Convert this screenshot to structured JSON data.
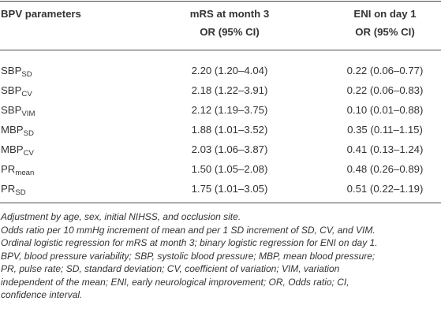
{
  "table": {
    "headers": {
      "col1": "BPV parameters",
      "col2_line1": "mRS at month 3",
      "col2_line2": "OR (95% CI)",
      "col3_line1": "ENI on day 1",
      "col3_line2": "OR (95% CI)"
    },
    "rows": [
      {
        "param": "SBP",
        "sub": "SD",
        "mrs": "2.20 (1.20–4.04)",
        "eni": "0.22 (0.06–0.77)"
      },
      {
        "param": "SBP",
        "sub": "CV",
        "mrs": "2.18 (1.22–3.91)",
        "eni": "0.22 (0.06–0.83)"
      },
      {
        "param": "SBP",
        "sub": "VIM",
        "mrs": "2.12 (1.19–3.75)",
        "eni": "0.10 (0.01–0.88)"
      },
      {
        "param": "MBP",
        "sub": "SD",
        "mrs": "1.88 (1.01–3.52)",
        "eni": "0.35 (0.11–1.15)"
      },
      {
        "param": "MBP",
        "sub": "CV",
        "mrs": "2.03 (1.06–3.87)",
        "eni": "0.41 (0.13–1.24)"
      },
      {
        "param": "PR",
        "sub": "mean",
        "mrs": "1.50 (1.05–2.08)",
        "eni": "0.48 (0.26–0.89)"
      },
      {
        "param": "PR",
        "sub": "SD",
        "mrs": "1.75 (1.01–3.05)",
        "eni": "0.51 (0.22–1.19)"
      }
    ]
  },
  "footnotes": [
    "Adjustment by age, sex, initial NIHSS, and occlusion site.",
    "Odds ratio per 10 mmHg increment of mean and per 1 SD increment of SD, CV, and VIM.",
    "Ordinal logistic regression for mRS at month 3; binary logistic regression for ENI on day 1.",
    "BPV, blood pressure variability; SBP, systolic blood pressure; MBP, mean blood pressure;",
    "PR, pulse rate; SD, standard deviation; CV, coefficient of variation; VIM, variation",
    "independent of the mean; ENI, early neurological improvement; OR, Odds ratio; CI,",
    "confidence interval."
  ]
}
